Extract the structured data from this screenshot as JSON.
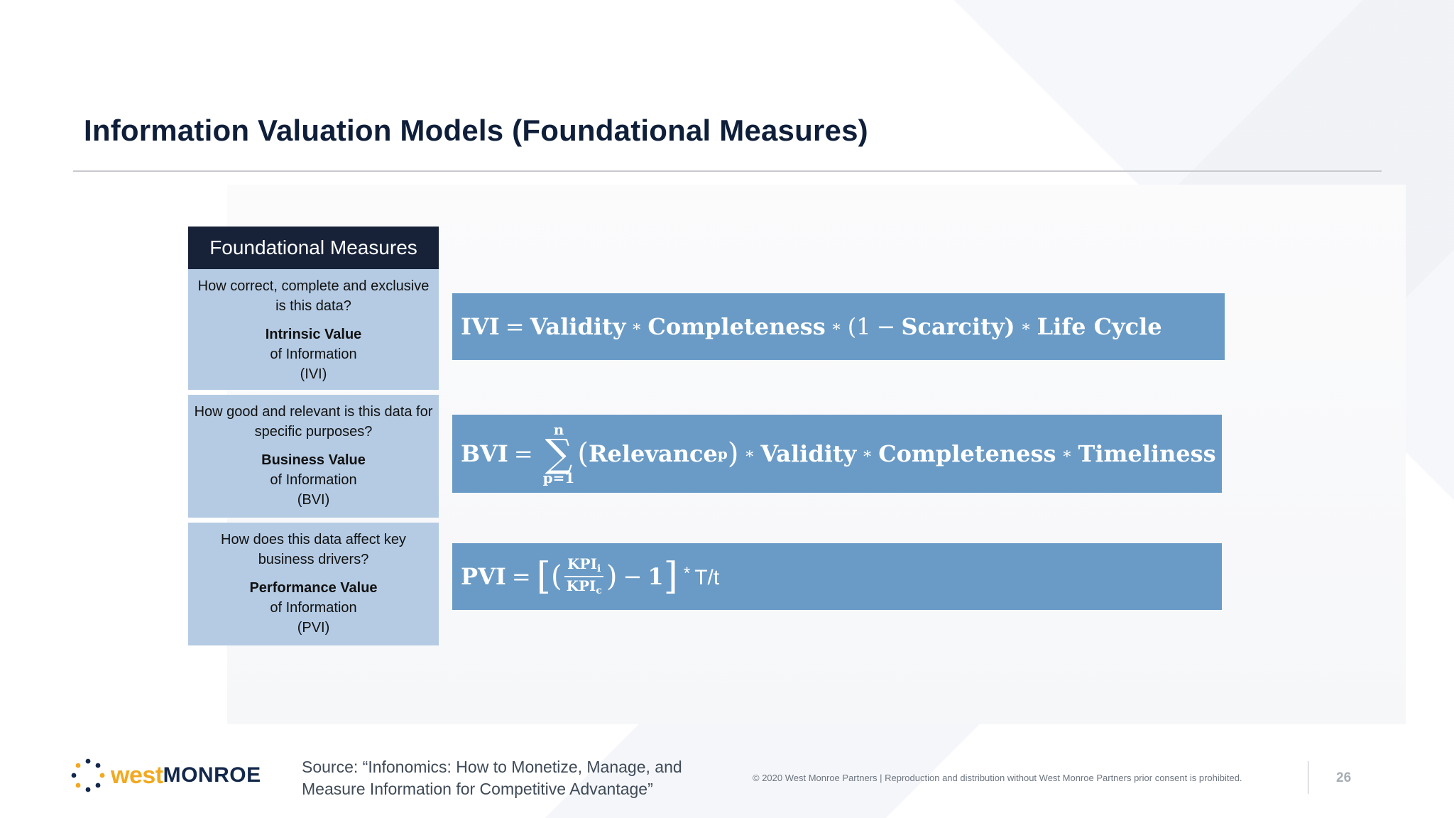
{
  "slide": {
    "title": "Information Valuation Models (Foundational Measures)",
    "page_number": "26"
  },
  "table": {
    "header": "Foundational Measures",
    "rows": [
      {
        "question": "How correct, complete and exclusive is this data?",
        "name": "Intrinsic Value",
        "sub": "of Information",
        "abbr": "(IVI)"
      },
      {
        "question": "How good and relevant is this data for specific purposes?",
        "name": "Business Value",
        "sub": "of Information",
        "abbr": "(BVI)"
      },
      {
        "question": "How does this data affect key business drivers?",
        "name": "Performance Value",
        "sub": "of Information",
        "abbr": "(PVI)"
      }
    ]
  },
  "formulas": {
    "ivi": {
      "lhs": "IVI",
      "eq": "=",
      "t1": "Validity",
      "t2": "Completeness",
      "open": "(1",
      "minus": "−",
      "t3": "Scarcity)",
      "t4": "Life Cycle",
      "star": "∗"
    },
    "bvi": {
      "lhs": "BVI",
      "eq": "=",
      "upper": "n",
      "sigma": "∑",
      "lower": "p=1",
      "lparen": "(",
      "t1": "Relevance",
      "t1_sub": "p",
      "rparen": ")",
      "t2": "Validity",
      "t3": "Completeness",
      "t4": "Timeliness",
      "star": "∗"
    },
    "pvi": {
      "lhs": "PVI",
      "eq": "=",
      "lbracket": "[",
      "lparen": "(",
      "num": "KPI",
      "num_sub": "i",
      "den": "KPI",
      "den_sub": "c",
      "rparen": ")",
      "minus": "−",
      "one": "1",
      "rbracket": "]",
      "star": "*",
      "tail": "T/t"
    }
  },
  "footer": {
    "logo_west": "west",
    "logo_monroe": "MONROE",
    "source_line1": "Source: “Infonomics: How to Monetize, Manage, and",
    "source_line2": "Measure Information for Competitive Advantage”",
    "copyright": "© 2020 West Monroe Partners | Reproduction and distribution without West Monroe Partners prior consent  is prohibited."
  },
  "colors": {
    "title": "#0f1f3a",
    "table_header": "#172239",
    "table_cell": "#b5cbe3",
    "formula_bar": "#6a9bc6",
    "logo_orange": "#f2a91f",
    "logo_navy": "#13284b"
  }
}
